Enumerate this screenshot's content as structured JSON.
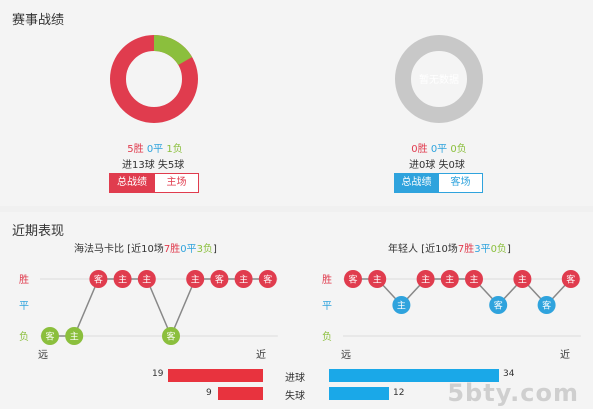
{
  "season": {
    "title": "赛事战绩",
    "total": {
      "wins": 5,
      "draws": 0,
      "losses": 1,
      "win_text": "5胜",
      "draw_text": "0平",
      "loss_text": "1负",
      "goals_text": "进13球 失5球",
      "tab_active": "总战绩",
      "tab_inactive": "主场"
    },
    "away": {
      "empty_text": "暂无数据",
      "win_text": "0胜",
      "draw_text": "0平",
      "loss_text": "0负",
      "goals_text": "进0球 失0球",
      "tab_active": "总战绩",
      "tab_inactive": "客场"
    },
    "colors": {
      "win": "#e03c4e",
      "draw": "#2fa3dd",
      "loss": "#8bbf3d",
      "empty": "#c8c8c8"
    }
  },
  "recent": {
    "title": "近期表现",
    "row_labels": {
      "win": "胜",
      "draw": "平",
      "loss": "负"
    },
    "axis": {
      "far": "远",
      "near": "近"
    },
    "home": {
      "head_name": "海法马卡比",
      "head_prefix": " [近10场",
      "wins_text": "7胜",
      "draws_text": "0平",
      "losses_text": "3负",
      "head_suffix": "]",
      "results": [
        "L",
        "L",
        "W",
        "W",
        "W",
        "L",
        "W",
        "W",
        "W",
        "W"
      ],
      "venues": [
        "客",
        "主",
        "客",
        "主",
        "主",
        "客",
        "主",
        "客",
        "主",
        "客"
      ]
    },
    "away": {
      "head_name": "年轻人",
      "head_prefix": " [近10场",
      "wins_text": "7胜",
      "draws_text": "3平",
      "losses_text": "0负",
      "head_suffix": "]",
      "results": [
        "W",
        "W",
        "D",
        "W",
        "W",
        "W",
        "D",
        "W",
        "D",
        "W"
      ],
      "venues": [
        "客",
        "主",
        "主",
        "主",
        "主",
        "主",
        "客",
        "主",
        "客",
        "客"
      ]
    },
    "goals": {
      "scored_label": "进球",
      "conceded_label": "失球",
      "home_scored": 19,
      "home_conceded": 9,
      "away_scored": 34,
      "away_conceded": 12
    }
  },
  "watermark": "5bty.com"
}
